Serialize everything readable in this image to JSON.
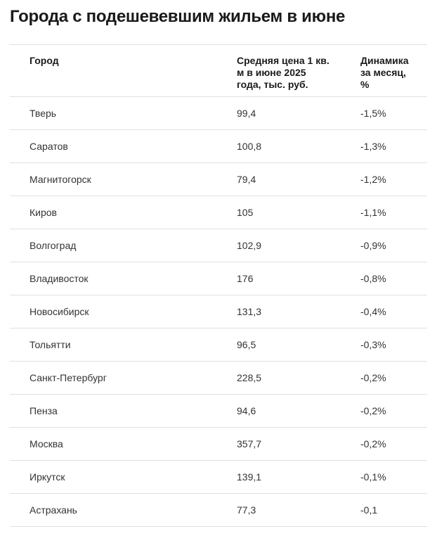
{
  "page": {
    "title": "Города с подешевевшим жильем в июне"
  },
  "colors": {
    "background": "#ffffff",
    "title_text": "#1a1a1a",
    "header_text": "#1a1a1a",
    "body_text": "#333333",
    "divider": "#e0e0e0"
  },
  "table": {
    "columns": [
      {
        "lines": [
          "Город"
        ]
      },
      {
        "lines": [
          "Средняя цена 1 кв.",
          "м в июне 2025",
          "года, тыс. руб."
        ]
      },
      {
        "lines": [
          "Динамика",
          "за месяц,",
          "%"
        ]
      }
    ],
    "rows": [
      {
        "city": "Тверь",
        "price": "99,4",
        "change": "-1,5%"
      },
      {
        "city": "Саратов",
        "price": "100,8",
        "change": "-1,3%"
      },
      {
        "city": "Магнитогорск",
        "price": "79,4",
        "change": "-1,2%"
      },
      {
        "city": "Киров",
        "price": "105",
        "change": "-1,1%"
      },
      {
        "city": "Волгоград",
        "price": "102,9",
        "change": "-0,9%"
      },
      {
        "city": "Владивосток",
        "price": "176",
        "change": "-0,8%"
      },
      {
        "city": "Новосибирск",
        "price": "131,3",
        "change": "-0,4%"
      },
      {
        "city": "Тольятти",
        "price": "96,5",
        "change": "-0,3%"
      },
      {
        "city": "Санкт-Петербург",
        "price": "228,5",
        "change": "-0,2%"
      },
      {
        "city": "Пенза",
        "price": "94,6",
        "change": "-0,2%"
      },
      {
        "city": "Москва",
        "price": "357,7",
        "change": "-0,2%"
      },
      {
        "city": "Иркутск",
        "price": "139,1",
        "change": "-0,1%"
      },
      {
        "city": "Астрахань",
        "price": "77,3",
        "change": "-0,1"
      }
    ]
  },
  "chart_data": {
    "type": "table",
    "title": "Города с подешевевшим жильем в июне",
    "columns": [
      "Город",
      "Средняя цена 1 кв. м в июне 2025 года, тыс. руб.",
      "Динамика за месяц, %"
    ],
    "rows": [
      [
        "Тверь",
        99.4,
        -1.5
      ],
      [
        "Саратов",
        100.8,
        -1.3
      ],
      [
        "Магнитогорск",
        79.4,
        -1.2
      ],
      [
        "Киров",
        105,
        -1.1
      ],
      [
        "Волгоград",
        102.9,
        -0.9
      ],
      [
        "Владивосток",
        176,
        -0.8
      ],
      [
        "Новосибирск",
        131.3,
        -0.4
      ],
      [
        "Тольятти",
        96.5,
        -0.3
      ],
      [
        "Санкт-Петербург",
        228.5,
        -0.2
      ],
      [
        "Пенза",
        94.6,
        -0.2
      ],
      [
        "Москва",
        357.7,
        -0.2
      ],
      [
        "Иркутск",
        139.1,
        -0.1
      ],
      [
        "Астрахань",
        77.3,
        -0.1
      ]
    ]
  }
}
